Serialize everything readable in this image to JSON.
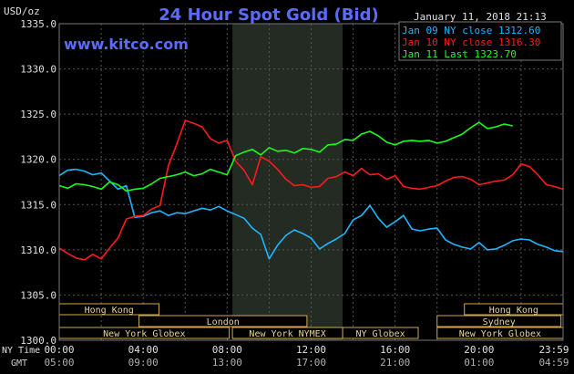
{
  "chart_data": {
    "type": "line",
    "title": "24 Hour Spot Gold (Bid)",
    "website": "www.kitco.com",
    "timestamp": "January 11, 2018 21:13",
    "y_unit": "USD/oz",
    "ylim": [
      1300,
      1335
    ],
    "y_ticks": [
      "1335.0",
      "1330.0",
      "1325.0",
      "1320.0",
      "1315.0",
      "1310.0",
      "1305.0",
      "1300.0"
    ],
    "x_ticks": [
      {
        "ny": "00:00",
        "gmt": "05:00"
      },
      {
        "ny": "04:00",
        "gmt": "09:00"
      },
      {
        "ny": "08:00",
        "gmt": "13:00"
      },
      {
        "ny": "12:00",
        "gmt": "17:00"
      },
      {
        "ny": "16:00",
        "gmt": "21:00"
      },
      {
        "ny": "20:00",
        "gmt": "01:00"
      },
      {
        "ny": "23:59",
        "gmt": "04:59"
      }
    ],
    "x_row_labels": {
      "ny": "NY Time",
      "gmt": "GMT"
    },
    "grid": true,
    "highlight_band_hours": [
      8.25,
      13.5
    ],
    "sessions": [
      {
        "name": "Hong Kong",
        "row": 1,
        "start": 0,
        "end": 4.75
      },
      {
        "name": "London",
        "row": 2,
        "start": 3.8,
        "end": 11.8
      },
      {
        "name": "New York Globex",
        "row": 3,
        "start": 0,
        "end": 8.1
      },
      {
        "name": "New York NYMEX",
        "row": 3,
        "start": 8.25,
        "end": 13.5
      },
      {
        "name": "NY Globex",
        "row": 3,
        "start": 13.5,
        "end": 17.1
      },
      {
        "name": "Hong Kong",
        "row": 1,
        "start": 19.3,
        "end": 24
      },
      {
        "name": "Sydney",
        "row": 2,
        "start": 18.0,
        "end": 23.9
      },
      {
        "name": "New York Globex",
        "row": 3,
        "start": 18.0,
        "end": 24
      }
    ],
    "series": [
      {
        "name": "Jan 09 NY close 1312.60",
        "color": "#1eb7ff",
        "x": [
          0.0,
          0.4,
          0.8,
          1.2,
          1.6,
          2.0,
          2.4,
          2.8,
          3.2,
          3.6,
          4.0,
          4.4,
          4.8,
          5.2,
          5.6,
          6.0,
          6.4,
          6.8,
          7.2,
          7.6,
          8.0,
          8.4,
          8.8,
          9.2,
          9.6,
          10.0,
          10.4,
          10.8,
          11.2,
          11.6,
          12.0,
          12.4,
          12.8,
          13.2,
          13.6,
          14.0,
          14.4,
          14.8,
          15.2,
          15.6,
          16.0,
          16.4,
          16.8,
          17.2,
          17.6,
          18.0,
          18.4,
          18.8,
          19.2,
          19.6,
          20.0,
          20.4,
          20.8,
          21.2,
          21.6,
          22.0,
          22.4,
          22.8,
          23.2,
          23.6,
          24.0
        ],
        "values": [
          1318.2,
          1318.8,
          1318.9,
          1318.7,
          1318.3,
          1318.5,
          1317.6,
          1316.7,
          1317.1,
          1313.6,
          1313.7,
          1314.1,
          1314.3,
          1313.8,
          1314.1,
          1314.0,
          1314.3,
          1314.6,
          1314.4,
          1314.8,
          1314.3,
          1313.9,
          1313.5,
          1312.4,
          1311.7,
          1309.0,
          1310.5,
          1311.6,
          1312.2,
          1311.8,
          1311.3,
          1310.1,
          1310.7,
          1311.2,
          1311.8,
          1313.3,
          1313.8,
          1314.9,
          1313.5,
          1312.5,
          1313.1,
          1313.8,
          1312.3,
          1312.1,
          1312.3,
          1312.4,
          1311.1,
          1310.6,
          1310.3,
          1310.1,
          1310.8,
          1310.0,
          1310.1,
          1310.5,
          1311.0,
          1311.2,
          1311.1,
          1310.6,
          1310.3,
          1309.9,
          1309.8
        ]
      },
      {
        "name": "Jan 10 NY close 1316.30",
        "color": "#ff1a1a",
        "x": [
          0.0,
          0.4,
          0.8,
          1.2,
          1.6,
          2.0,
          2.4,
          2.8,
          3.2,
          3.6,
          4.0,
          4.4,
          4.8,
          5.2,
          5.6,
          6.0,
          6.4,
          6.8,
          7.2,
          7.6,
          8.0,
          8.4,
          8.8,
          9.2,
          9.6,
          10.0,
          10.4,
          10.8,
          11.2,
          11.6,
          12.0,
          12.4,
          12.8,
          13.2,
          13.6,
          14.0,
          14.4,
          14.8,
          15.2,
          15.6,
          16.0,
          16.4,
          16.8,
          17.2,
          17.6,
          18.0,
          18.4,
          18.8,
          19.2,
          19.6,
          20.0,
          20.4,
          20.8,
          21.2,
          21.6,
          22.0,
          22.4,
          22.8,
          23.2,
          23.6,
          24.0
        ],
        "values": [
          1310.2,
          1309.6,
          1309.1,
          1308.9,
          1309.5,
          1309.0,
          1310.2,
          1311.3,
          1313.4,
          1313.7,
          1313.8,
          1314.5,
          1314.9,
          1319.3,
          1321.7,
          1324.3,
          1324.0,
          1323.6,
          1322.3,
          1321.8,
          1322.1,
          1319.8,
          1318.8,
          1317.2,
          1320.3,
          1319.8,
          1318.9,
          1317.8,
          1317.1,
          1317.2,
          1316.9,
          1317.0,
          1317.9,
          1318.1,
          1318.6,
          1318.2,
          1319.0,
          1318.3,
          1318.4,
          1317.8,
          1318.2,
          1317.0,
          1316.8,
          1316.7,
          1316.9,
          1317.1,
          1317.6,
          1318.0,
          1318.1,
          1317.8,
          1317.2,
          1317.4,
          1317.6,
          1317.7,
          1318.3,
          1319.5,
          1319.2,
          1318.3,
          1317.2,
          1317.0,
          1316.7
        ]
      },
      {
        "name": "Jan 11 Last 1323.70",
        "color": "#1aff1a",
        "x": [
          0.0,
          0.4,
          0.8,
          1.2,
          1.6,
          2.0,
          2.4,
          2.8,
          3.2,
          3.6,
          4.0,
          4.4,
          4.8,
          5.2,
          5.6,
          6.0,
          6.4,
          6.8,
          7.2,
          7.6,
          8.0,
          8.4,
          8.8,
          9.2,
          9.6,
          10.0,
          10.4,
          10.8,
          11.2,
          11.6,
          12.0,
          12.4,
          12.8,
          13.2,
          13.6,
          14.0,
          14.4,
          14.8,
          15.2,
          15.6,
          16.0,
          16.4,
          16.8,
          17.2,
          17.6,
          18.0,
          18.4,
          18.8,
          19.2,
          19.6,
          20.0,
          20.4,
          20.8,
          21.2,
          21.6
        ],
        "values": [
          1317.1,
          1316.8,
          1317.3,
          1317.2,
          1317.0,
          1316.7,
          1317.5,
          1317.2,
          1316.5,
          1316.7,
          1316.8,
          1317.3,
          1317.9,
          1318.1,
          1318.3,
          1318.6,
          1318.2,
          1318.4,
          1318.9,
          1318.6,
          1318.3,
          1320.4,
          1320.8,
          1321.1,
          1320.5,
          1321.3,
          1320.9,
          1321.0,
          1320.7,
          1321.2,
          1321.1,
          1320.8,
          1321.6,
          1321.7,
          1322.2,
          1322.1,
          1322.8,
          1323.1,
          1322.6,
          1321.9,
          1321.6,
          1322.0,
          1322.1,
          1322.0,
          1322.1,
          1321.8,
          1322.0,
          1322.4,
          1322.8,
          1323.5,
          1324.1,
          1323.4,
          1323.6,
          1323.9,
          1323.7
        ]
      }
    ]
  }
}
